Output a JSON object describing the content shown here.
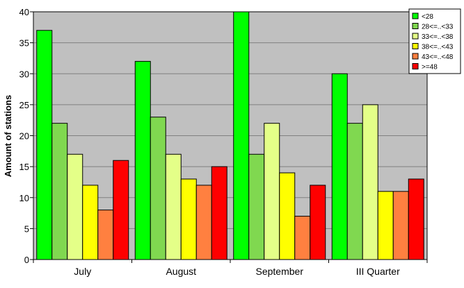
{
  "chart_data": {
    "type": "bar",
    "title": "",
    "xlabel": "",
    "ylabel": "Amount of stations",
    "ylim": [
      0,
      40
    ],
    "yticks": [
      0,
      5,
      10,
      15,
      20,
      25,
      30,
      35,
      40
    ],
    "grid": true,
    "legend_position": "top-right",
    "categories": [
      "July",
      "August",
      "September",
      "III Quarter"
    ],
    "series": [
      {
        "name": "<28",
        "color": "#00ff00",
        "values": [
          37,
          32,
          40,
          30
        ]
      },
      {
        "name": "28<=..<33",
        "color": "#80d850",
        "values": [
          22,
          23,
          17,
          22
        ]
      },
      {
        "name": "33<=..<38",
        "color": "#e4ff88",
        "values": [
          17,
          17,
          22,
          25
        ]
      },
      {
        "name": "38<=..<43",
        "color": "#ffff00",
        "values": [
          12,
          13,
          14,
          11
        ]
      },
      {
        "name": "43<=..<48",
        "color": "#ff8040",
        "values": [
          8,
          12,
          7,
          11
        ]
      },
      {
        "name": ">=48",
        "color": "#ff0000",
        "values": [
          16,
          15,
          12,
          13
        ]
      }
    ],
    "plot_background": "#c0c0c0"
  }
}
